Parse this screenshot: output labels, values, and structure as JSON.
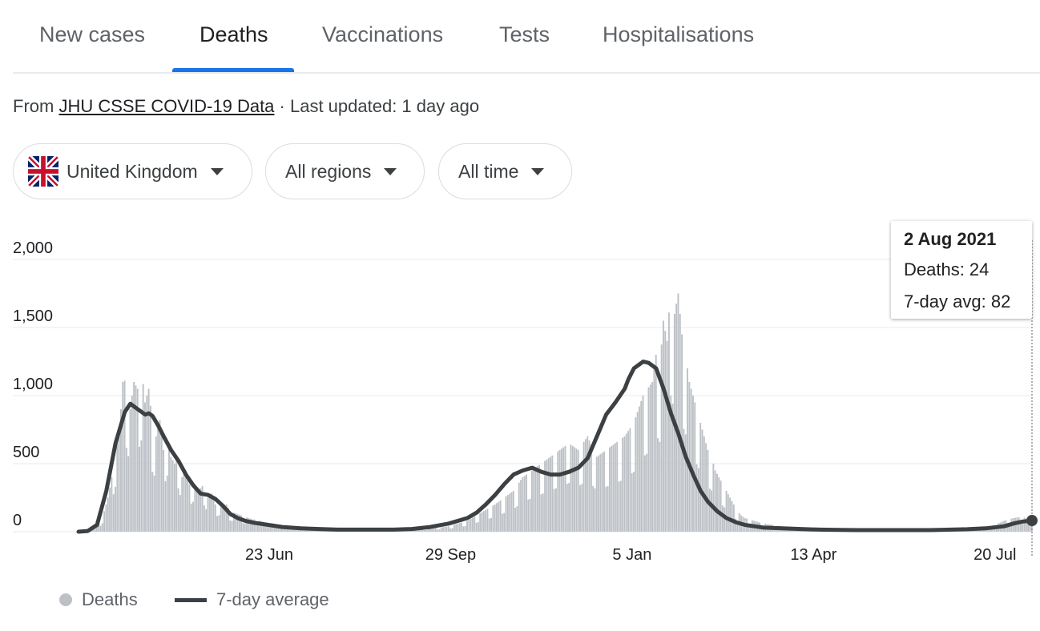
{
  "tabs": [
    {
      "label": "New cases",
      "active": false
    },
    {
      "label": "Deaths",
      "active": true
    },
    {
      "label": "Vaccinations",
      "active": false
    },
    {
      "label": "Tests",
      "active": false
    },
    {
      "label": "Hospitalisations",
      "active": false
    }
  ],
  "source": {
    "prefix": "From",
    "link": "JHU CSSE COVID-19 Data",
    "updated": "· Last updated: 1 day ago"
  },
  "filters": {
    "country": "United Kingdom",
    "region": "All regions",
    "time": "All time"
  },
  "tooltip": {
    "date": "2 Aug 2021",
    "deaths": "Deaths: 24",
    "avg": "7-day avg: 82"
  },
  "legend": {
    "bars": "Deaths",
    "line": "7-day average"
  },
  "colors": {
    "accent": "#1a73e8",
    "bars": "#bdc1c6",
    "line": "#3c4043",
    "flag_blue": "#012169",
    "flag_red": "#C8102E"
  },
  "chart_data": {
    "type": "bar",
    "ylim": [
      0,
      2000
    ],
    "yticks": [
      "0",
      "500",
      "1,000",
      "1,500",
      "2,000"
    ],
    "xticks": [
      "23 Jun",
      "29 Sep",
      "5 Jan",
      "13 Apr",
      "20 Jul"
    ],
    "xtick_day_index": [
      103,
      201,
      299,
      397,
      495
    ],
    "series": [
      {
        "name": "Deaths",
        "day_index": [
          0,
          4,
          8,
          12,
          14,
          16,
          18,
          20,
          22,
          24,
          26,
          28,
          30,
          32,
          34,
          36,
          38,
          40,
          42,
          44,
          46,
          48,
          50,
          52,
          54,
          56,
          58,
          60,
          62,
          64,
          66,
          68,
          70,
          72,
          74,
          76,
          78,
          80,
          82,
          84,
          86,
          88,
          90,
          92,
          94,
          96,
          98,
          100,
          105,
          110,
          115,
          120,
          125,
          130,
          135,
          140,
          145,
          150,
          155,
          160,
          165,
          170,
          175,
          180,
          185,
          190,
          195,
          200,
          205,
          210,
          215,
          220,
          225,
          230,
          235,
          240,
          245,
          250,
          255,
          260,
          265,
          270,
          275,
          280,
          285,
          290,
          295,
          300,
          305,
          310,
          312,
          314,
          316,
          318,
          320,
          322,
          324,
          326,
          328,
          330,
          332,
          334,
          336,
          338,
          340,
          342,
          344,
          346,
          348,
          350,
          352,
          354,
          356,
          358,
          360,
          365,
          370,
          375,
          380,
          385,
          390,
          395,
          400,
          410,
          420,
          430,
          440,
          450,
          460,
          470,
          480,
          490,
          495,
          500,
          505,
          510,
          513,
          515
        ],
        "values": [
          0,
          5,
          20,
          80,
          150,
          250,
          400,
          600,
          700,
          1100,
          1120,
          900,
          1100,
          1050,
          1220,
          950,
          1050,
          800,
          700,
          820,
          600,
          750,
          550,
          500,
          580,
          400,
          450,
          350,
          400,
          300,
          320,
          350,
          250,
          280,
          200,
          220,
          180,
          200,
          150,
          140,
          130,
          120,
          110,
          100,
          90,
          90,
          80,
          70,
          60,
          50,
          40,
          30,
          25,
          20,
          20,
          20,
          15,
          15,
          15,
          15,
          15,
          15,
          15,
          20,
          20,
          25,
          30,
          40,
          60,
          80,
          120,
          160,
          200,
          250,
          300,
          400,
          450,
          500,
          550,
          600,
          650,
          600,
          700,
          550,
          600,
          650,
          700,
          800,
          1000,
          1100,
          1300,
          1200,
          1550,
          1400,
          1820,
          1600,
          1750,
          1450,
          1300,
          1100,
          1000,
          900,
          800,
          700,
          600,
          550,
          450,
          400,
          350,
          300,
          250,
          200,
          150,
          120,
          100,
          80,
          60,
          50,
          40,
          30,
          25,
          20,
          15,
          15,
          12,
          10,
          10,
          10,
          12,
          15,
          20,
          30,
          50,
          80,
          100,
          110,
          90,
          60,
          40,
          24
        ]
      },
      {
        "name": "7-day average",
        "day_index": [
          0,
          5,
          10,
          15,
          20,
          25,
          28,
          30,
          32,
          34,
          36,
          38,
          40,
          43,
          46,
          50,
          54,
          58,
          62,
          66,
          70,
          74,
          78,
          82,
          86,
          90,
          95,
          100,
          110,
          120,
          130,
          140,
          150,
          160,
          170,
          180,
          190,
          200,
          210,
          215,
          220,
          225,
          230,
          235,
          240,
          245,
          250,
          255,
          260,
          265,
          270,
          275,
          280,
          285,
          290,
          295,
          297,
          300,
          305,
          308,
          312,
          316,
          320,
          324,
          328,
          332,
          336,
          340,
          345,
          350,
          355,
          360,
          365,
          370,
          380,
          390,
          400,
          420,
          440,
          460,
          480,
          490,
          500,
          505,
          510,
          515
        ],
        "values": [
          0,
          5,
          50,
          300,
          650,
          880,
          940,
          920,
          900,
          880,
          860,
          870,
          850,
          780,
          700,
          600,
          520,
          420,
          340,
          280,
          270,
          240,
          190,
          130,
          100,
          80,
          65,
          55,
          35,
          25,
          20,
          15,
          15,
          15,
          15,
          20,
          35,
          60,
          100,
          140,
          200,
          270,
          350,
          420,
          450,
          470,
          440,
          420,
          420,
          440,
          470,
          540,
          700,
          860,
          950,
          1050,
          1120,
          1200,
          1250,
          1240,
          1200,
          1050,
          870,
          720,
          550,
          420,
          300,
          220,
          150,
          100,
          70,
          50,
          40,
          30,
          25,
          20,
          15,
          12,
          12,
          12,
          18,
          25,
          40,
          60,
          75,
          82
        ]
      }
    ]
  }
}
